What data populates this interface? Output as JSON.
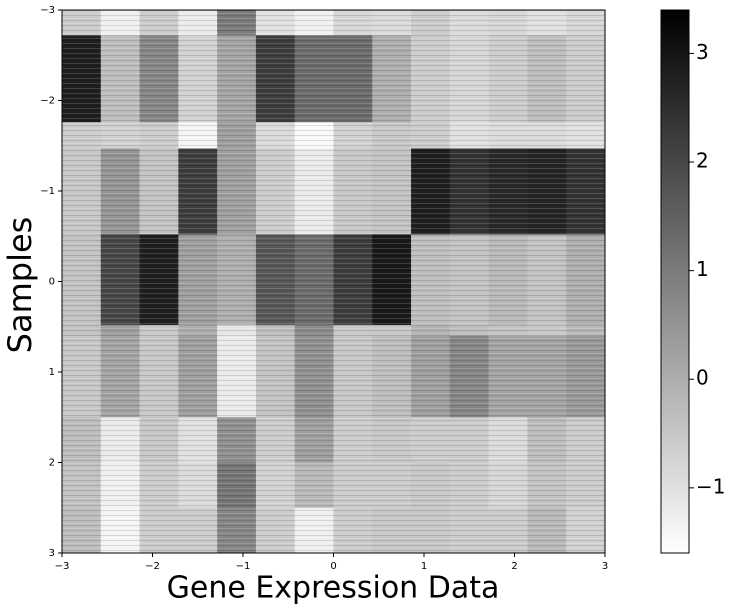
{
  "chart_data": {
    "type": "heatmap",
    "xlabel": "Gene Expression Data",
    "ylabel": "Samples",
    "colormap": "gray_r",
    "xlim": [
      -3,
      3
    ],
    "ylim": [
      -3,
      3
    ],
    "xticks": [
      {
        "value": -3,
        "label": "−3"
      },
      {
        "value": -2,
        "label": "−2"
      },
      {
        "value": -1,
        "label": "−1"
      },
      0,
      1,
      2,
      3
    ],
    "yticks": [
      {
        "value": -3,
        "label": "−3"
      },
      {
        "value": -2,
        "label": "−2"
      },
      {
        "value": -1,
        "label": "−1"
      },
      0,
      1,
      2,
      3
    ],
    "yedges": [
      -3,
      -2.72,
      -1.76,
      -1.47,
      -0.52,
      0.48,
      0.6,
      1.5,
      2.0,
      2.5,
      3
    ],
    "values": [
      [
        -0.6,
        -1.3,
        -0.6,
        -1.2,
        1.0,
        -1.0,
        -1.3,
        -0.8,
        -0.9,
        -0.6,
        -0.9,
        -0.8,
        -1.0,
        -0.8
      ],
      [
        2.8,
        -0.3,
        0.8,
        -0.7,
        0.2,
        2.2,
        1.3,
        1.3,
        0.0,
        -0.6,
        -0.8,
        -0.6,
        -0.3,
        -0.6
      ],
      [
        -0.6,
        -0.7,
        -0.6,
        -1.4,
        0.3,
        -0.9,
        -1.5,
        -0.7,
        -0.5,
        -0.6,
        -1.0,
        -0.9,
        -0.9,
        -1.0
      ],
      [
        -0.5,
        0.5,
        -0.4,
        2.2,
        0.3,
        -0.6,
        -1.2,
        -0.5,
        -0.4,
        2.8,
        2.4,
        2.6,
        2.7,
        2.4
      ],
      [
        -0.4,
        2.0,
        2.8,
        0.3,
        0.0,
        1.7,
        1.3,
        2.2,
        2.9,
        -0.3,
        -0.4,
        -0.2,
        -0.4,
        0.0
      ],
      [
        -0.4,
        0.3,
        -0.5,
        0.0,
        -1.1,
        -0.3,
        0.7,
        -0.5,
        -0.5,
        -0.1,
        -0.3,
        -0.4,
        -0.5,
        -0.2
      ],
      [
        -0.5,
        0.2,
        -0.5,
        0.3,
        -1.2,
        -0.4,
        0.6,
        -0.5,
        -0.3,
        0.3,
        0.8,
        0.2,
        0.2,
        0.4
      ],
      [
        -0.3,
        -1.2,
        -0.5,
        -1.0,
        0.6,
        -0.6,
        0.3,
        -0.6,
        -0.5,
        -0.6,
        -0.6,
        -0.9,
        -0.3,
        -0.6
      ],
      [
        -0.4,
        -1.3,
        -0.6,
        -0.9,
        1.1,
        -0.7,
        -0.2,
        -0.6,
        -0.6,
        -0.5,
        -0.6,
        -0.8,
        -0.4,
        -0.6
      ],
      [
        -0.3,
        -1.4,
        -0.6,
        -0.6,
        0.8,
        -0.6,
        -1.3,
        -0.6,
        -0.5,
        -0.5,
        -0.6,
        -0.6,
        -0.2,
        -0.7
      ]
    ],
    "clim": [
      -1.6,
      3.4
    ],
    "cticks": [
      {
        "value": -1,
        "label": "−1"
      },
      0,
      1,
      2,
      3
    ]
  }
}
